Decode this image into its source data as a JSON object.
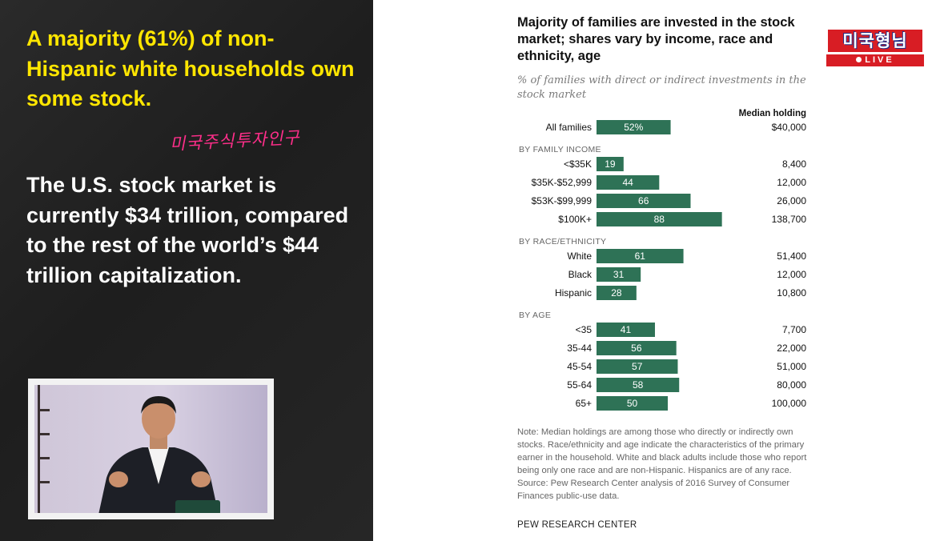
{
  "left": {
    "headline": "A majority (61%) of non-Hispanic white households own some stock.",
    "handwriting": "미국주식투자인구",
    "body": "The U.S. stock market is currently $34 trillion, compared to the rest of the world’s $44 trillion capitalization."
  },
  "badge": {
    "logo": "미국형님",
    "live": "LIVE"
  },
  "chart_data": {
    "type": "bar",
    "title": "Majority of families are invested in the stock market; shares vary by income, race and ethnicity, age",
    "subtitle": "% of families with direct or indirect investments in the stock market",
    "median_header": "Median holding",
    "bar_color": "#2e7256",
    "groups": [
      {
        "heading": "",
        "rows": [
          {
            "label": "All families",
            "value": 52,
            "display": "52%",
            "median": "$40,000"
          }
        ]
      },
      {
        "heading": "BY FAMILY INCOME",
        "rows": [
          {
            "label": "<$35K",
            "value": 19,
            "display": "19",
            "median": "8,400"
          },
          {
            "label": "$35K-$52,999",
            "value": 44,
            "display": "44",
            "median": "12,000"
          },
          {
            "label": "$53K-$99,999",
            "value": 66,
            "display": "66",
            "median": "26,000"
          },
          {
            "label": "$100K+",
            "value": 88,
            "display": "88",
            "median": "138,700"
          }
        ]
      },
      {
        "heading": "BY RACE/ETHNICITY",
        "rows": [
          {
            "label": "White",
            "value": 61,
            "display": "61",
            "median": "51,400"
          },
          {
            "label": "Black",
            "value": 31,
            "display": "31",
            "median": "12,000"
          },
          {
            "label": "Hispanic",
            "value": 28,
            "display": "28",
            "median": "10,800"
          }
        ]
      },
      {
        "heading": "BY AGE",
        "rows": [
          {
            "label": "<35",
            "value": 41,
            "display": "41",
            "median": "7,700"
          },
          {
            "label": "35-44",
            "value": 56,
            "display": "56",
            "median": "22,000"
          },
          {
            "label": "45-54",
            "value": 57,
            "display": "57",
            "median": "51,000"
          },
          {
            "label": "55-64",
            "value": 58,
            "display": "58",
            "median": "80,000"
          },
          {
            "label": "65+",
            "value": 50,
            "display": "50",
            "median": "100,000"
          }
        ]
      }
    ],
    "note": "Note: Median holdings are among those who directly or indirectly own stocks. Race/ethnicity and age indicate the characteristics of the primary earner in the household. White and black adults include those who report being only one race and are non-Hispanic. Hispanics are of any race. Source: Pew Research Center analysis of 2016 Survey of Consumer Finances public-use data.",
    "source": "PEW RESEARCH CENTER"
  }
}
